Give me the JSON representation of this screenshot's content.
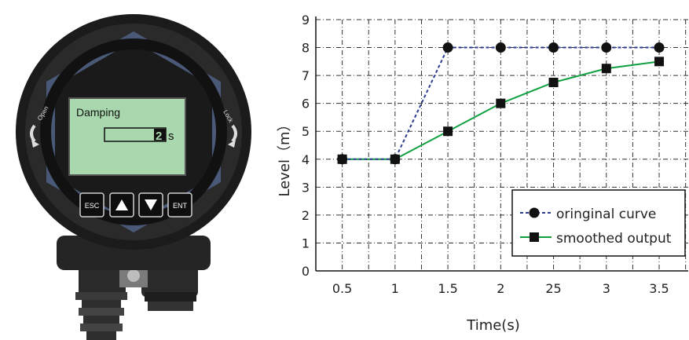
{
  "device": {
    "display": {
      "title": "Damping",
      "value": "2",
      "unit": "s"
    },
    "ring_labels": {
      "left": "Open",
      "right": "Lock"
    },
    "keys": [
      {
        "label": "ESC",
        "icon": ""
      },
      {
        "label": "",
        "icon": "up-arrow-icon"
      },
      {
        "label": "",
        "icon": "down-arrow-icon"
      },
      {
        "label": "ENT",
        "icon": ""
      }
    ],
    "colors": {
      "lcd": "#a9d8ae",
      "body": "#1e1e1e",
      "ring": "#4b5978"
    }
  },
  "chart_data": {
    "type": "line",
    "categories": [
      "0.5",
      "1",
      "1.5",
      "2",
      "25",
      "3",
      "3.5"
    ],
    "series": [
      {
        "name": "oringinal curve",
        "values": [
          4,
          4,
          8,
          8,
          8,
          8,
          8
        ],
        "marker": "circle",
        "line": "dashed",
        "color": "#2b3b8f"
      },
      {
        "name": "smoothed output",
        "values": [
          4,
          4,
          5,
          6,
          6.75,
          7.25,
          7.5
        ],
        "marker": "square",
        "line": "solid",
        "color": "#10a040"
      }
    ],
    "xlabel": "Time(s)",
    "ylabel": "Level（m）",
    "ylim": [
      0,
      9
    ],
    "yticks": [
      "0",
      "1",
      "2",
      "3",
      "4",
      "5",
      "6",
      "7",
      "8",
      "9"
    ],
    "grid": true,
    "legend": "bottom-right"
  }
}
